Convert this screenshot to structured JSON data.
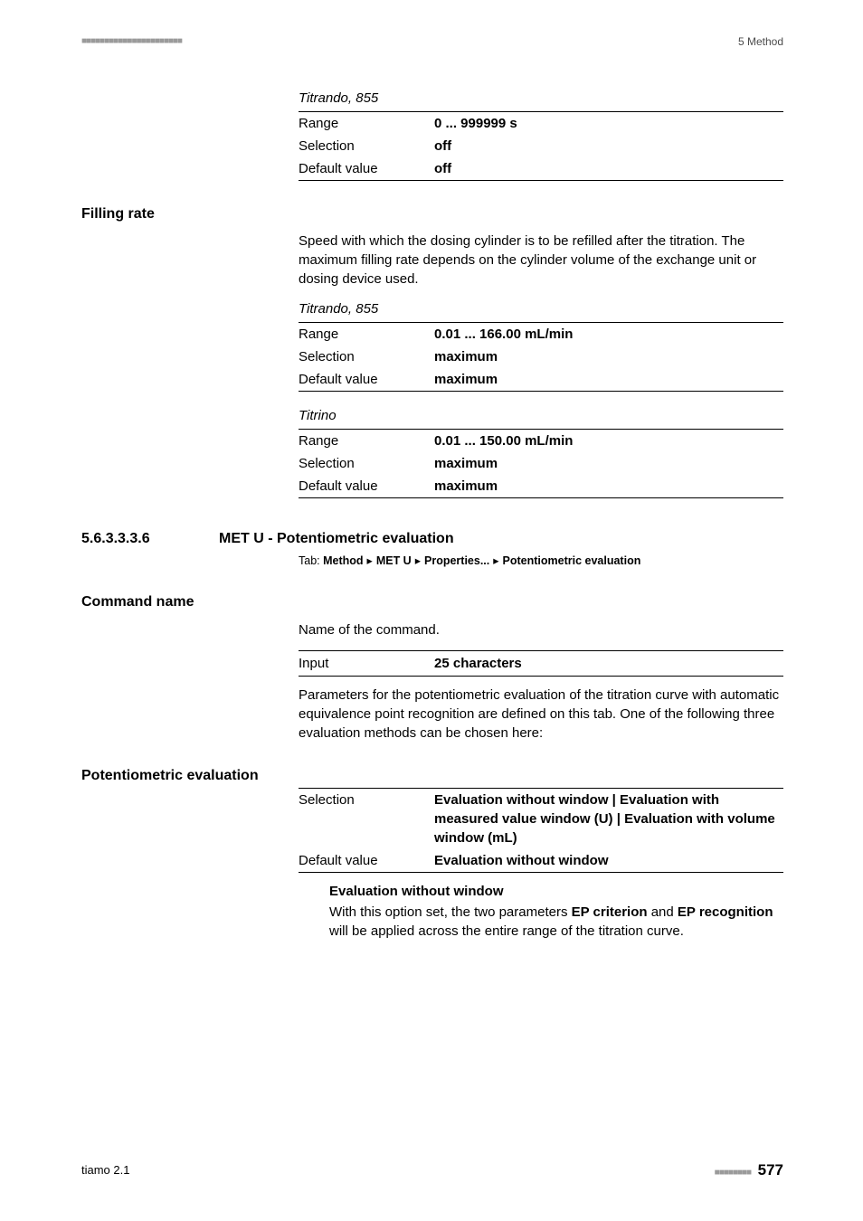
{
  "header": {
    "squares": "■■■■■■■■■■■■■■■■■■■■■■",
    "right": "5 Method"
  },
  "titrando855_a": {
    "label": "Titrando, 855",
    "range_key": "Range",
    "range_val": "0 ... 999999 s",
    "sel_key": "Selection",
    "sel_val": "off",
    "def_key": "Default value",
    "def_val": "off"
  },
  "filling_rate": {
    "heading": "Filling rate",
    "para": "Speed with which the dosing cylinder is to be refilled after the titration. The maximum filling rate depends on the cylinder volume of the exchange unit or dosing device used.",
    "titrando": {
      "label": "Titrando, 855",
      "range_key": "Range",
      "range_val": "0.01 ... 166.00 mL/min",
      "sel_key": "Selection",
      "sel_val": "maximum",
      "def_key": "Default value",
      "def_val": "maximum"
    },
    "titrino": {
      "label": "Titrino",
      "range_key": "Range",
      "range_val": "0.01 ... 150.00 mL/min",
      "sel_key": "Selection",
      "sel_val": "maximum",
      "def_key": "Default value",
      "def_val": "maximum"
    }
  },
  "sec": {
    "num": "5.6.3.3.3.6",
    "title": "MET U - Potentiometric evaluation",
    "tab_prefix": "Tab: ",
    "p1": "Method",
    "p2": "MET U",
    "p3": "Properties...",
    "p4": "Potentiometric evaluation"
  },
  "command_name": {
    "heading": "Command name",
    "para": "Name of the command.",
    "input_key": "Input",
    "input_val": "25 characters",
    "desc": "Parameters for the potentiometric evaluation of the titration curve with automatic equivalence point recognition are defined on this tab. One of the following three evaluation methods can be chosen here:"
  },
  "pot_eval": {
    "heading": "Potentiometric evaluation",
    "sel_key": "Selection",
    "sel_val": "Evaluation without window | Evaluation with measured value window (U) | Evaluation with volume window (mL)",
    "def_key": "Default value",
    "def_val": "Evaluation without window",
    "sub_heading": "Evaluation without window",
    "sub_txt_a": "With this option set, the two parameters ",
    "sub_b1": "EP criterion",
    "sub_txt_b": " and ",
    "sub_b2": "EP recognition",
    "sub_txt_c": " will be applied across the entire range of the titration curve."
  },
  "footer": {
    "left": "tiamo 2.1",
    "squares": "■■■■■■■■",
    "page": "577"
  }
}
